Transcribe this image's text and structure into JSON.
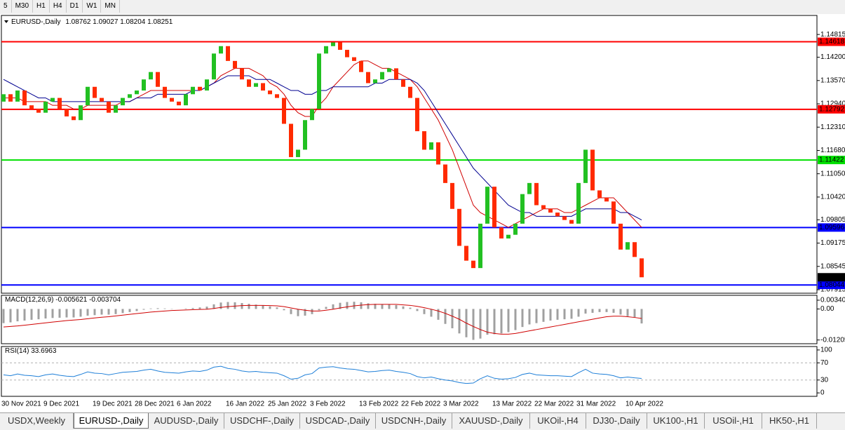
{
  "toolbar": {
    "timeframes": [
      "5",
      "M30",
      "H1",
      "H4",
      "D1",
      "W1",
      "MN"
    ]
  },
  "chart_data": [
    {
      "type": "candlestick",
      "title": "EURUSD-,Daily",
      "subtitle": "1.08762 1.09027 1.08204 1.08251",
      "categories": [
        "30 Nov 2021",
        null,
        null,
        null,
        null,
        null,
        "9 Dec 2021",
        null,
        null,
        null,
        null,
        null,
        null,
        "19 Dec 2021",
        null,
        null,
        null,
        null,
        null,
        "28 Dec 2021",
        null,
        null,
        null,
        null,
        null,
        "6 Jan 2022",
        null,
        null,
        null,
        null,
        null,
        null,
        "16 Jan 2022",
        null,
        null,
        null,
        null,
        null,
        "25 Jan 2022",
        null,
        null,
        null,
        null,
        null,
        "3 Feb 2022",
        null,
        null,
        null,
        null,
        null,
        null,
        "13 Feb 2022",
        null,
        null,
        null,
        null,
        null,
        "22 Feb 2022",
        null,
        null,
        null,
        null,
        null,
        "3 Mar 2022",
        null,
        null,
        null,
        null,
        null,
        null,
        "13 Mar 2022",
        null,
        null,
        null,
        null,
        null,
        "22 Mar 2022",
        null,
        null,
        null,
        null,
        null,
        "31 Mar 2022",
        null,
        null,
        null,
        null,
        null,
        null,
        "10 Apr 2022",
        null,
        null
      ],
      "open": [
        1.13,
        1.132,
        1.13,
        1.133,
        1.129,
        1.128,
        1.127,
        1.13,
        1.131,
        1.128,
        1.126,
        1.125,
        1.129,
        1.134,
        1.131,
        1.13,
        1.127,
        1.129,
        1.131,
        1.132,
        1.133,
        1.136,
        1.138,
        1.134,
        1.131,
        1.13,
        1.129,
        1.132,
        1.134,
        1.133,
        1.136,
        1.143,
        1.145,
        1.141,
        1.139,
        1.136,
        1.134,
        1.135,
        1.133,
        1.132,
        1.131,
        1.124,
        1.115,
        1.117,
        1.125,
        1.128,
        1.143,
        1.145,
        1.146,
        1.144,
        1.142,
        1.141,
        1.138,
        1.135,
        1.136,
        1.138,
        1.139,
        1.136,
        1.134,
        1.131,
        1.122,
        1.117,
        1.119,
        1.113,
        1.108,
        1.101,
        1.091,
        1.087,
        1.085,
        1.097,
        1.107,
        1.096,
        1.093,
        1.094,
        1.097,
        1.105,
        1.108,
        1.102,
        1.101,
        1.1,
        1.099,
        1.098,
        1.097,
        1.108,
        1.117,
        1.106,
        1.104,
        1.103,
        1.097,
        1.09,
        1.092,
        1.08762
      ],
      "close": [
        1.132,
        1.13,
        1.133,
        1.129,
        1.128,
        1.127,
        1.13,
        1.131,
        1.128,
        1.126,
        1.125,
        1.129,
        1.134,
        1.131,
        1.13,
        1.127,
        1.129,
        1.131,
        1.132,
        1.133,
        1.136,
        1.138,
        1.134,
        1.131,
        1.13,
        1.129,
        1.132,
        1.134,
        1.133,
        1.136,
        1.143,
        1.145,
        1.141,
        1.139,
        1.136,
        1.134,
        1.135,
        1.133,
        1.132,
        1.131,
        1.124,
        1.115,
        1.117,
        1.125,
        1.128,
        1.143,
        1.145,
        1.146,
        1.144,
        1.142,
        1.141,
        1.138,
        1.135,
        1.136,
        1.138,
        1.139,
        1.136,
        1.134,
        1.131,
        1.122,
        1.117,
        1.119,
        1.113,
        1.108,
        1.101,
        1.091,
        1.087,
        1.085,
        1.097,
        1.107,
        1.096,
        1.093,
        1.094,
        1.097,
        1.105,
        1.108,
        1.102,
        1.101,
        1.1,
        1.099,
        1.098,
        1.097,
        1.108,
        1.117,
        1.106,
        1.104,
        1.103,
        1.097,
        1.09,
        1.092,
        1.088,
        1.08251
      ],
      "up_color": "#22c022",
      "down_color": "#ff2a00",
      "series": [
        {
          "color": "#d00000",
          "values": [
            1.131,
            1.131,
            1.131,
            1.13,
            1.13,
            1.13,
            1.13,
            1.129,
            1.129,
            1.129,
            1.128,
            1.128,
            1.129,
            1.129,
            1.129,
            1.129,
            1.129,
            1.13,
            1.13,
            1.131,
            1.132,
            1.133,
            1.133,
            1.133,
            1.133,
            1.133,
            1.133,
            1.133,
            1.133,
            1.134,
            1.135,
            1.137,
            1.138,
            1.139,
            1.139,
            1.139,
            1.138,
            1.137,
            1.135,
            1.134,
            1.132,
            1.129,
            1.127,
            1.126,
            1.126,
            1.129,
            1.131,
            1.134,
            1.136,
            1.138,
            1.14,
            1.141,
            1.141,
            1.14,
            1.139,
            1.139,
            1.138,
            1.137,
            1.136,
            1.134,
            1.131,
            1.128,
            1.125,
            1.121,
            1.117,
            1.112,
            1.107,
            1.102,
            1.1,
            1.099,
            1.098,
            1.097,
            1.096,
            1.097,
            1.098,
            1.099,
            1.1,
            1.101,
            1.101,
            1.101,
            1.1,
            1.1,
            1.101,
            1.102,
            1.103,
            1.104,
            1.104,
            1.104,
            1.102,
            1.1,
            1.098,
            1.096
          ]
        },
        {
          "color": "#000090",
          "values": [
            1.136,
            1.135,
            1.134,
            1.133,
            1.132,
            1.131,
            1.131,
            1.13,
            1.13,
            1.13,
            1.13,
            1.13,
            1.13,
            1.13,
            1.13,
            1.13,
            1.13,
            1.13,
            1.13,
            1.131,
            1.131,
            1.131,
            1.132,
            1.132,
            1.132,
            1.132,
            1.132,
            1.133,
            1.133,
            1.134,
            1.135,
            1.136,
            1.137,
            1.137,
            1.137,
            1.137,
            1.136,
            1.136,
            1.136,
            1.135,
            1.134,
            1.133,
            1.133,
            1.132,
            1.132,
            1.133,
            1.133,
            1.134,
            1.134,
            1.134,
            1.134,
            1.134,
            1.134,
            1.135,
            1.135,
            1.136,
            1.136,
            1.136,
            1.136,
            1.135,
            1.133,
            1.13,
            1.127,
            1.124,
            1.121,
            1.118,
            1.115,
            1.112,
            1.11,
            1.108,
            1.106,
            1.104,
            1.102,
            1.101,
            1.1,
            1.1,
            1.099,
            1.099,
            1.099,
            1.099,
            1.099,
            1.099,
            1.1,
            1.101,
            1.101,
            1.101,
            1.101,
            1.101,
            1.1,
            1.1,
            1.099,
            1.098
          ]
        }
      ],
      "levels": [
        {
          "value": 1.14618,
          "color": "#ff0000"
        },
        {
          "value": 1.12792,
          "color": "#ff0000"
        },
        {
          "value": 1.11422,
          "color": "#00e000"
        },
        {
          "value": 1.09596,
          "color": "#0000ff"
        },
        {
          "value": 1.08044,
          "color": "#0000ff"
        }
      ],
      "ylim": [
        1.0782,
        1.1533
      ],
      "yticks": [
        1.14815,
        {
          "value": 1.142,
          "label": "1.14200"
        },
        {
          "value": 1.1357,
          "label": "1.13570"
        },
        {
          "value": 1.1294,
          "label": "1.12940"
        },
        {
          "value": 1.1231,
          "label": "1.12310"
        },
        {
          "value": 1.1168,
          "label": "1.11680"
        },
        {
          "value": 1.1105,
          "label": "1.11050"
        },
        {
          "value": 1.1042,
          "label": "1.10420"
        },
        1.09805,
        1.09175,
        1.08545,
        1.07915
      ]
    },
    {
      "type": "macd",
      "title": "MACD(12,26,9)",
      "series": [
        {
          "color": "#a0a0a0",
          "values": [
            -0.0055,
            -0.0052,
            -0.0048,
            -0.0045,
            -0.0042,
            -0.004,
            -0.0037,
            -0.0035,
            -0.0034,
            -0.0033,
            -0.0033,
            -0.003,
            -0.0026,
            -0.0024,
            -0.0022,
            -0.0022,
            -0.002,
            -0.0016,
            -0.0012,
            -0.0008,
            -0.0003,
            0.0002,
            0.0003,
            0.0002,
            0.0001,
            0.0,
            0.0002,
            0.0004,
            0.0006,
            0.0009,
            0.0018,
            0.0025,
            0.0027,
            0.0026,
            0.0023,
            0.002,
            0.0017,
            0.0014,
            0.001,
            0.0006,
            -0.0005,
            -0.002,
            -0.0028,
            -0.0026,
            -0.002,
            -0.0005,
            0.0008,
            0.0018,
            0.0024,
            0.0027,
            0.0028,
            0.0026,
            0.0022,
            0.002,
            0.0019,
            0.0018,
            0.0015,
            0.001,
            0.0005,
            -0.0008,
            -0.002,
            -0.003,
            -0.0042,
            -0.0058,
            -0.0075,
            -0.0095,
            -0.011,
            -0.012,
            -0.0115,
            -0.01,
            -0.0098,
            -0.0095,
            -0.009,
            -0.0082,
            -0.007,
            -0.006,
            -0.0055,
            -0.005,
            -0.0045,
            -0.0042,
            -0.004,
            -0.0038,
            -0.003,
            -0.0018,
            -0.0015,
            -0.0012,
            -0.0012,
            -0.0015,
            -0.0022,
            -0.0028,
            -0.0032,
            -0.005621
          ]
        },
        {
          "color": "#d00000",
          "values": [
            -0.007,
            -0.0068,
            -0.0066,
            -0.0063,
            -0.006,
            -0.0057,
            -0.0054,
            -0.0051,
            -0.0048,
            -0.0045,
            -0.0043,
            -0.0041,
            -0.0038,
            -0.0035,
            -0.0032,
            -0.003,
            -0.0027,
            -0.0024,
            -0.0021,
            -0.0018,
            -0.0015,
            -0.0012,
            -0.001,
            -0.0008,
            -0.0006,
            -0.0005,
            -0.0004,
            -0.0003,
            -0.0002,
            -0.0001,
            0.0002,
            0.0006,
            0.0009,
            0.0011,
            0.0013,
            0.0014,
            0.0014,
            0.0014,
            0.0013,
            0.0012,
            0.0009,
            0.0004,
            -0.0001,
            -0.0005,
            -0.0008,
            -0.0008,
            -0.0005,
            -0.0001,
            0.0004,
            0.0008,
            0.0012,
            0.0015,
            0.0017,
            0.0018,
            0.0018,
            0.0018,
            0.0018,
            0.0016,
            0.0014,
            0.001,
            0.0005,
            -0.0001,
            -0.0008,
            -0.0017,
            -0.0028,
            -0.004,
            -0.0055,
            -0.0068,
            -0.008,
            -0.009,
            -0.0095,
            -0.0098,
            -0.0098,
            -0.0095,
            -0.009,
            -0.0085,
            -0.008,
            -0.0075,
            -0.007,
            -0.0065,
            -0.006,
            -0.0055,
            -0.005,
            -0.0045,
            -0.004,
            -0.0035,
            -0.003,
            -0.0028,
            -0.0028,
            -0.003,
            -0.0033,
            -0.003704
          ]
        }
      ],
      "ylim": [
        -0.0135,
        0.0053
      ],
      "yticks": [
        0.003406,
        {
          "value": 0,
          "label": "0.00"
        },
        -0.01205
      ]
    },
    {
      "type": "rsi",
      "title": "RSI(14)",
      "series": [
        {
          "color": "#1e7fd8",
          "values": [
            42,
            40,
            44,
            41,
            40,
            38,
            42,
            44,
            41,
            39,
            38,
            43,
            49,
            46,
            45,
            42,
            45,
            48,
            49,
            50,
            53,
            55,
            51,
            48,
            47,
            46,
            49,
            51,
            50,
            53,
            60,
            62,
            57,
            55,
            51,
            49,
            50,
            48,
            47,
            46,
            40,
            32,
            34,
            42,
            45,
            58,
            60,
            61,
            58,
            56,
            55,
            52,
            49,
            50,
            52,
            53,
            50,
            48,
            45,
            38,
            35,
            37,
            33,
            30,
            28,
            24,
            22,
            23,
            33,
            40,
            34,
            32,
            33,
            36,
            43,
            46,
            42,
            41,
            40,
            40,
            39,
            38,
            47,
            55,
            46,
            44,
            43,
            40,
            35,
            37,
            35,
            33.6963
          ]
        }
      ],
      "levels": [
        70,
        30
      ],
      "ylim": [
        -8,
        108
      ],
      "yticks": [
        100,
        70,
        30,
        0
      ]
    }
  ],
  "tabs": [
    "USDX,Weekly",
    "EURUSD-,Daily",
    "AUDUSD-,Daily",
    "USDCHF-,Daily",
    "USDCAD-,Daily",
    "USDCNH-,Daily",
    "XAUUSD-,Daily",
    "UKOil-,H4",
    "DJ30-,Daily",
    "UK100-,H1",
    "USOil-,H1",
    "HK50-,H1"
  ],
  "active_tab": 1
}
